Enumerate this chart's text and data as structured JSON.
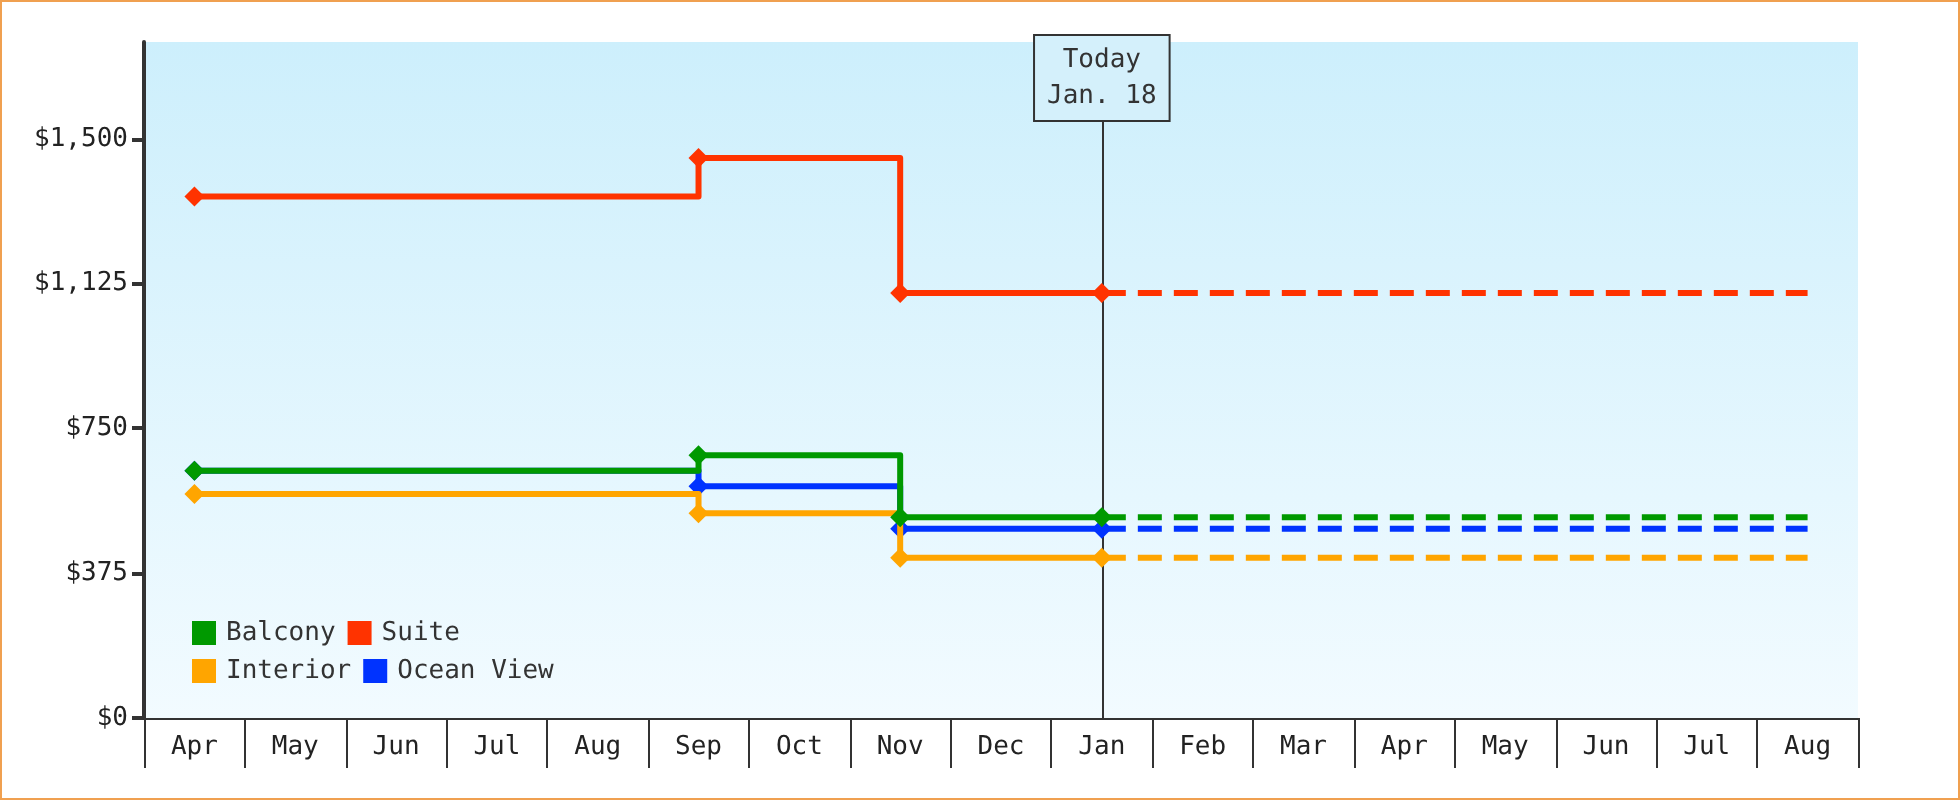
{
  "chart_data": {
    "type": "step",
    "line_style": "solid",
    "legend": "bottom left",
    "ylim": [
      0,
      1750
    ],
    "yticks": [
      {
        "value": 0,
        "label": "$0"
      },
      {
        "value": 375,
        "label": "$375"
      },
      {
        "value": 750,
        "label": "$750"
      },
      {
        "value": 1125,
        "label": "$1,125"
      },
      {
        "value": 1500,
        "label": "$1,500"
      }
    ],
    "categories": [
      "Apr",
      "May",
      "Jun",
      "Jul",
      "Aug",
      "Sep",
      "Oct",
      "Nov",
      "Dec",
      "Jan",
      "Feb",
      "Mar",
      "Apr",
      "May",
      "Jun",
      "Jul",
      "Aug"
    ],
    "ref_lines": [
      {
        "axis": "x",
        "value": "Jan",
        "label": "Today\nJan. 18",
        "color": "#333333"
      }
    ],
    "series": [
      {
        "name": "Balcony",
        "color": "#009900",
        "marker": "diamond",
        "values": [
          640,
          null,
          null,
          null,
          null,
          680,
          null,
          520,
          null,
          520,
          null,
          null,
          null,
          null,
          null,
          null,
          null
        ]
      },
      {
        "name": "Suite",
        "color": "#ff3300",
        "marker": "diamond",
        "values": [
          1350,
          null,
          null,
          null,
          null,
          1450,
          null,
          1100,
          null,
          1100,
          null,
          null,
          null,
          null,
          null,
          null,
          null
        ]
      },
      {
        "name": "Interior",
        "color": "#ffa500",
        "marker": "diamond",
        "values": [
          580,
          null,
          null,
          null,
          null,
          530,
          null,
          415,
          null,
          415,
          null,
          null,
          null,
          null,
          null,
          null,
          null
        ]
      },
      {
        "name": "Ocean View",
        "color": "#0033ff",
        "marker": "diamond",
        "values": [
          640,
          null,
          null,
          null,
          null,
          600,
          null,
          490,
          null,
          490,
          null,
          null,
          null,
          null,
          null,
          null,
          null
        ]
      },
      {
        "color": "#009900",
        "line_style": "dashed",
        "values": [
          null,
          null,
          null,
          null,
          null,
          null,
          null,
          null,
          null,
          520,
          null,
          null,
          null,
          null,
          null,
          null,
          520
        ]
      },
      {
        "color": "#ff3300",
        "line_style": "dashed",
        "values": [
          null,
          null,
          null,
          null,
          null,
          null,
          null,
          null,
          null,
          1100,
          null,
          null,
          null,
          null,
          null,
          null,
          1100
        ]
      },
      {
        "color": "#ffa500",
        "line_style": "dashed",
        "values": [
          null,
          null,
          null,
          null,
          null,
          null,
          null,
          null,
          null,
          415,
          null,
          null,
          null,
          null,
          null,
          null,
          415
        ]
      },
      {
        "color": "#0033ff",
        "line_style": "dashed",
        "values": [
          null,
          null,
          null,
          null,
          null,
          null,
          null,
          null,
          null,
          490,
          null,
          null,
          null,
          null,
          null,
          null,
          490
        ]
      }
    ]
  }
}
